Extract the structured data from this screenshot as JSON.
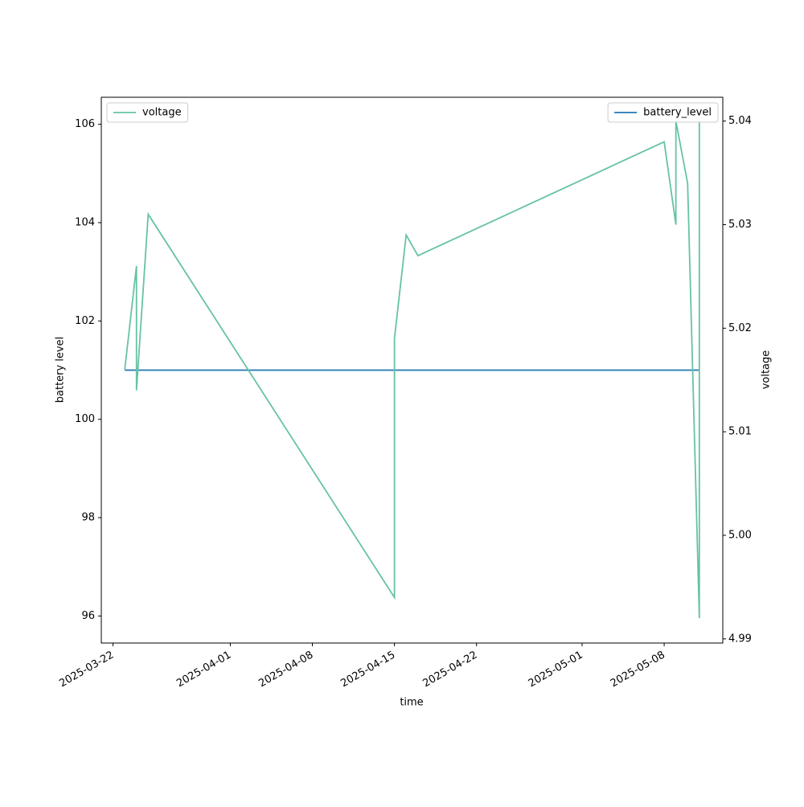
{
  "chart_data": {
    "type": "line",
    "x_label": "time",
    "y_label": "battery level",
    "y2_label": "voltage",
    "x": [
      "2025-03-23",
      "2025-03-24",
      "2025-03-24",
      "2025-03-25",
      "2025-04-15",
      "2025-04-15",
      "2025-04-16",
      "2025-04-17",
      "2025-05-08",
      "2025-05-09",
      "2025-05-09",
      "2025-05-10",
      "2025-05-10",
      "2025-05-11",
      "2025-05-11"
    ],
    "series": [
      {
        "name": "battery_level",
        "color": "#1f77b4",
        "axis": "y",
        "legend": "upper right",
        "values": [
          101,
          101,
          101,
          101,
          101,
          101,
          101,
          101,
          101,
          101,
          101,
          101,
          101,
          101,
          101
        ]
      },
      {
        "name": "voltage",
        "color": "#66c2a5",
        "axis": "y2",
        "legend": "upper left",
        "values": [
          5.016,
          5.026,
          5.014,
          5.031,
          4.994,
          5.019,
          5.029,
          5.027,
          5.038,
          5.03,
          5.04,
          5.034,
          5.034,
          4.992,
          5.04
        ]
      }
    ],
    "xlim": [
      "2025-03-21",
      "2025-05-13"
    ],
    "xticks": [
      "2025-03-22",
      "2025-04-01",
      "2025-04-08",
      "2025-04-15",
      "2025-04-22",
      "2025-05-01",
      "2025-05-08"
    ],
    "ylim": [
      95.45,
      106.55
    ],
    "yticks": [
      96,
      98,
      100,
      102,
      104,
      106
    ],
    "y2lim": [
      4.9896,
      5.0423
    ],
    "y2ticks": [
      4.99,
      {
        "value": 5.0,
        "label": "5.00"
      },
      5.01,
      5.02,
      5.03,
      5.04
    ],
    "grid": false
  }
}
